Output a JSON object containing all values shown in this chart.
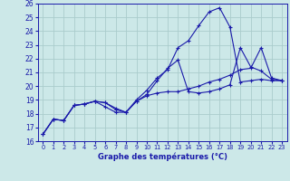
{
  "title": "Graphe des températures (°C)",
  "xlim": [
    -0.5,
    23.5
  ],
  "ylim": [
    16,
    26
  ],
  "xtick_labels": [
    "0",
    "1",
    "2",
    "3",
    "4",
    "5",
    "6",
    "7",
    "8",
    "9",
    "10",
    "11",
    "12",
    "13",
    "14",
    "15",
    "16",
    "17",
    "18",
    "19",
    "20",
    "21",
    "22",
    "23"
  ],
  "xticks": [
    0,
    1,
    2,
    3,
    4,
    5,
    6,
    7,
    8,
    9,
    10,
    11,
    12,
    13,
    14,
    15,
    16,
    17,
    18,
    19,
    20,
    21,
    22,
    23
  ],
  "yticks": [
    16,
    17,
    18,
    19,
    20,
    21,
    22,
    23,
    24,
    25,
    26
  ],
  "bg_color": "#cce8e8",
  "grid_color": "#aacccc",
  "line_color": "#1a1aaa",
  "line1_x": [
    0,
    1,
    2,
    3,
    4,
    5,
    6,
    7,
    8,
    9,
    10,
    11,
    12,
    13,
    14,
    15,
    16,
    17,
    18,
    19,
    20,
    21,
    22,
    23
  ],
  "line1_y": [
    16.5,
    17.6,
    17.5,
    18.6,
    18.7,
    18.9,
    18.5,
    18.1,
    18.1,
    19.0,
    19.7,
    20.6,
    21.2,
    22.8,
    23.3,
    24.4,
    25.4,
    25.7,
    24.3,
    20.3,
    20.4,
    20.5,
    20.4,
    20.4
  ],
  "line2_x": [
    0,
    1,
    2,
    3,
    4,
    5,
    6,
    7,
    8,
    9,
    10,
    11,
    12,
    13,
    14,
    15,
    16,
    17,
    18,
    19,
    20,
    21,
    22,
    23
  ],
  "line2_y": [
    16.5,
    17.6,
    17.5,
    18.6,
    18.7,
    18.9,
    18.8,
    18.4,
    18.1,
    18.9,
    19.3,
    19.5,
    19.6,
    19.6,
    19.8,
    20.0,
    20.3,
    20.5,
    20.8,
    21.2,
    21.3,
    22.8,
    20.6,
    20.4
  ],
  "line3_x": [
    0,
    1,
    2,
    3,
    4,
    5,
    6,
    7,
    8,
    9,
    10,
    11,
    12,
    13,
    14,
    15,
    16,
    17,
    18,
    19,
    20,
    21,
    22,
    23
  ],
  "line3_y": [
    16.5,
    17.6,
    17.5,
    18.6,
    18.7,
    18.9,
    18.8,
    18.3,
    18.1,
    18.9,
    19.4,
    20.4,
    21.3,
    21.9,
    19.6,
    19.5,
    19.6,
    19.8,
    20.1,
    22.8,
    21.4,
    21.1,
    20.5,
    20.4
  ]
}
